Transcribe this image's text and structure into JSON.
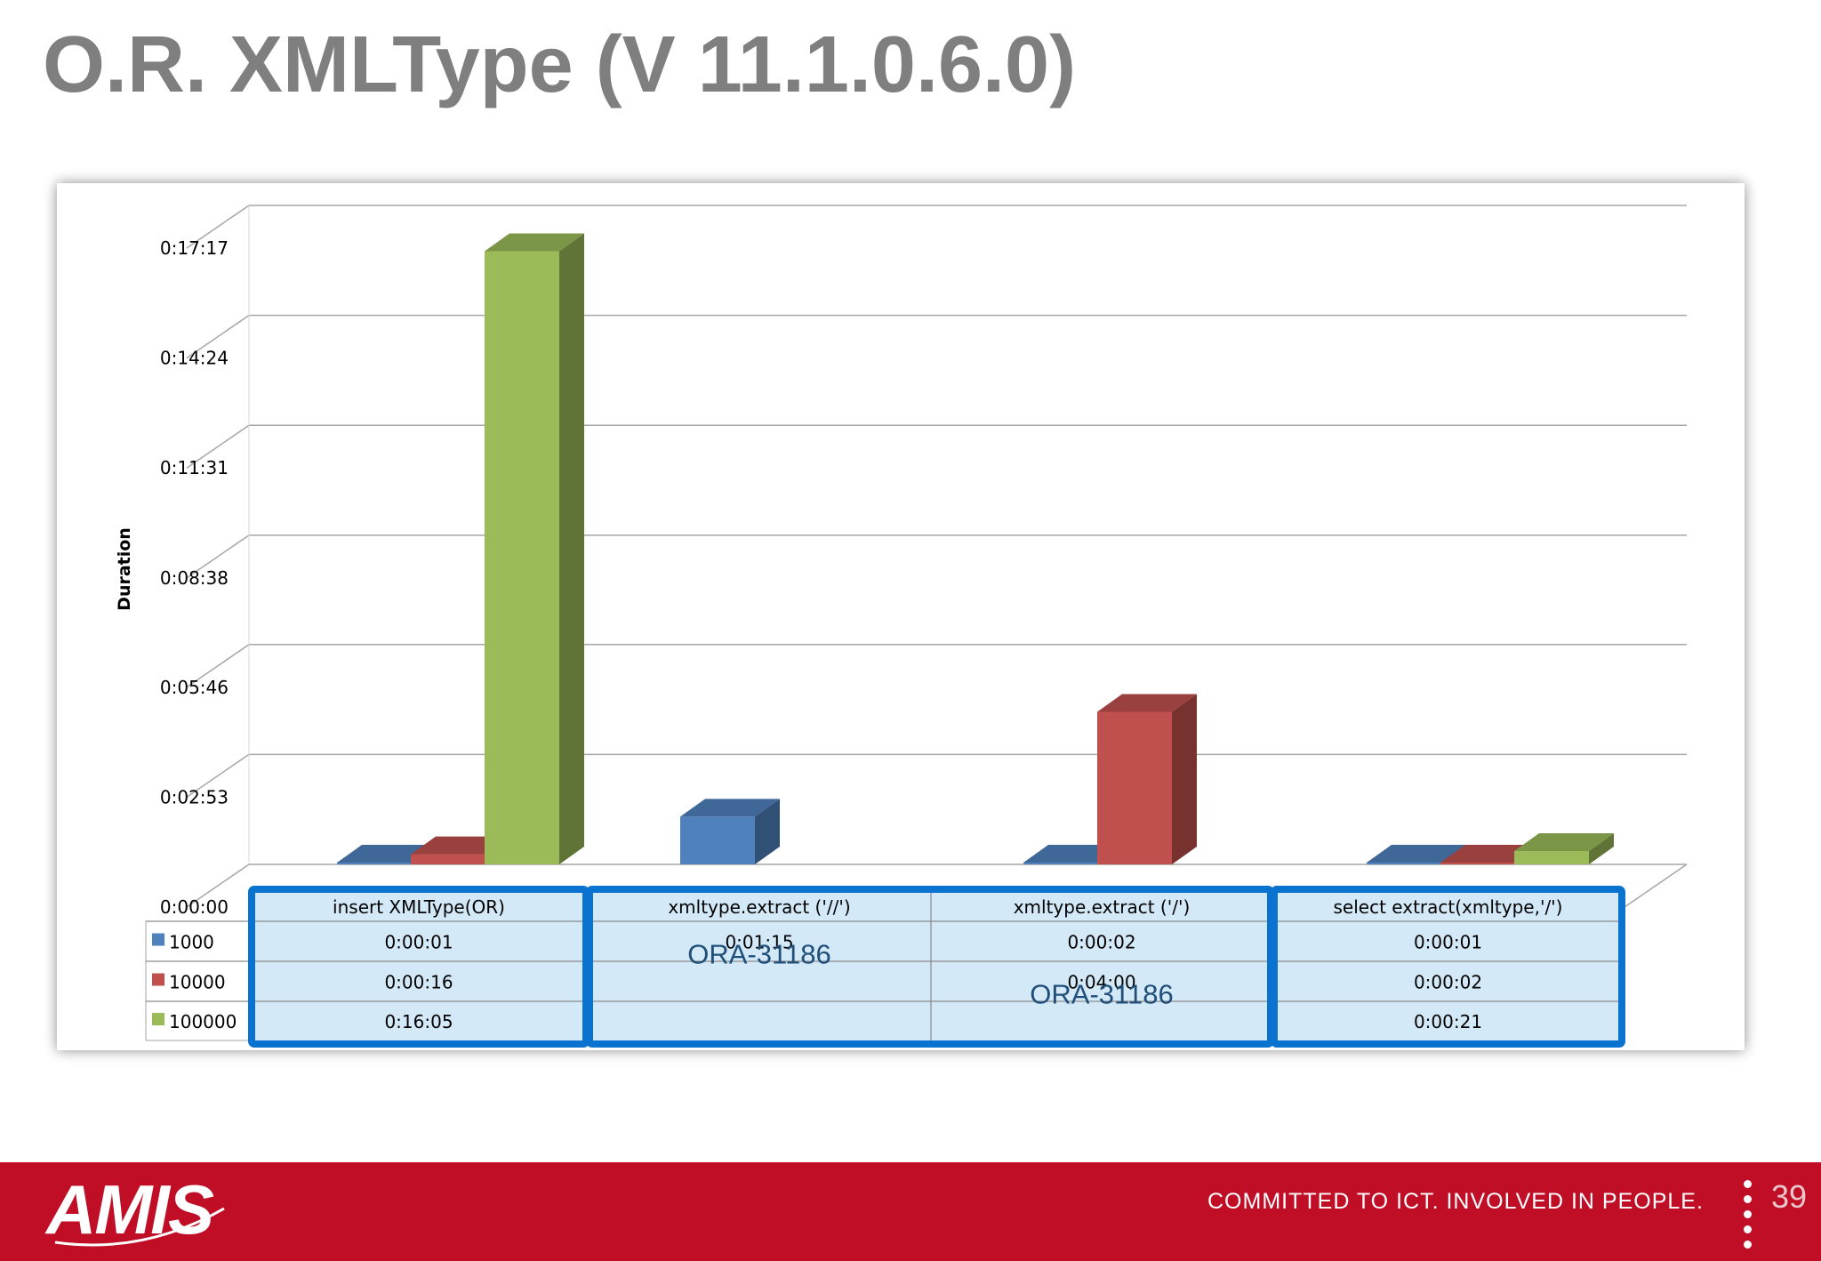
{
  "slide": {
    "title": "O.R. XMLType (V 11.1.0.6.0)",
    "page_number": "39"
  },
  "footer": {
    "logo": "AMIS",
    "tagline": "COMMITTED TO ICT. INVOLVED IN PEOPLE."
  },
  "colors": {
    "title": "#7f7f7f",
    "footer_bg": "#c00e26",
    "table_bg": "#d4e9f8",
    "table_border": "#0a73d0",
    "gridline": "#a6a6a6"
  },
  "chart_data": {
    "type": "bar",
    "style": "3d-clustered-column",
    "title": "",
    "ylabel": "Duration",
    "xlabel": "",
    "y_unit": "seconds",
    "ylim": [
      0,
      1037
    ],
    "y_ticks": [
      0,
      173,
      346,
      518,
      691,
      864,
      1037
    ],
    "y_tick_labels": [
      "0:00:00",
      "0:02:53",
      "0:05:46",
      "0:08:38",
      "0:11:31",
      "0:14:24",
      "0:17:17"
    ],
    "grid": true,
    "legend": "data-table",
    "categories": [
      "insert XMLType(OR)",
      "xmltype.extract ('//')",
      "xmltype.extract ('/')",
      "select extract(xmltype,'/')"
    ],
    "series": [
      {
        "name": "1000",
        "color": "#4f81bd",
        "values": [
          1,
          75,
          2,
          1
        ],
        "labels": [
          "0:00:01",
          "0:01:15",
          "0:00:02",
          "0:00:01"
        ]
      },
      {
        "name": "10000",
        "color": "#c0504d",
        "values": [
          16,
          null,
          240,
          2
        ],
        "labels": [
          "0:00:16",
          "",
          "0:04:00",
          "0:00:02"
        ]
      },
      {
        "name": "100000",
        "color": "#9bbb59",
        "values": [
          965,
          null,
          null,
          21
        ],
        "labels": [
          "0:16:05",
          "",
          "",
          "0:00:21"
        ]
      }
    ],
    "annotations": [
      {
        "text": "ORA-31186",
        "category": 1,
        "series": 1
      },
      {
        "text": "ORA-31186",
        "category": 2,
        "series": 2
      }
    ]
  }
}
